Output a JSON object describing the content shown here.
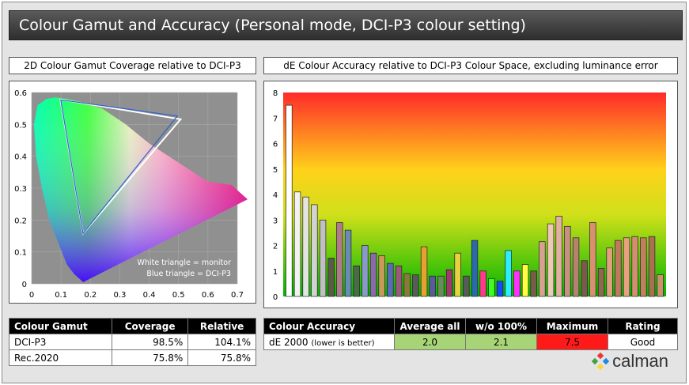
{
  "title": "Colour Gamut and Accuracy (Personal mode, DCI-P3 colour setting)",
  "gamut_panel": {
    "heading": "2D Colour Gamut Coverage relative to DCI-P3",
    "legend_white": "White triangle = monitor",
    "legend_blue": "Blue triangle = DCI-P3"
  },
  "de_panel": {
    "heading": "dE Colour Accuracy relative to DCI-P3 Colour Space, excluding luminance error"
  },
  "chart_data": [
    {
      "type": "scatter",
      "title": "2D Colour Gamut Coverage relative to DCI-P3",
      "xlim": [
        0,
        0.7
      ],
      "ylim": [
        0,
        0.6
      ],
      "x_ticks": [
        "0",
        "0.1",
        "0.2",
        "0.3",
        "0.4",
        "0.5",
        "0.6",
        "0.7"
      ],
      "y_ticks": [
        "0",
        "0.1",
        "0.2",
        "0.3",
        "0.4",
        "0.5",
        "0.6"
      ],
      "series": [
        {
          "name": "monitor",
          "points": [
            [
              0.507,
              0.516
            ],
            [
              0.098,
              0.578
            ],
            [
              0.175,
              0.158
            ]
          ]
        },
        {
          "name": "DCI-P3",
          "points": [
            [
              0.496,
              0.526
            ],
            [
              0.099,
              0.577
            ],
            [
              0.175,
              0.158
            ]
          ]
        }
      ]
    },
    {
      "type": "bar",
      "title": "dE Colour Accuracy relative to DCI-P3 Colour Space, excluding luminance error",
      "ylim": [
        0,
        8
      ],
      "y_ticks": [
        "0",
        "1",
        "2",
        "3",
        "4",
        "5",
        "6",
        "7",
        "8"
      ],
      "values": [
        7.5,
        4.1,
        3.9,
        3.6,
        3.0,
        1.5,
        2.9,
        2.6,
        1.2,
        2.0,
        1.7,
        1.6,
        1.3,
        1.2,
        0.9,
        0.85,
        1.95,
        0.8,
        0.8,
        1.05,
        1.7,
        0.8,
        2.2,
        1.0,
        0.7,
        0.6,
        1.8,
        1.0,
        1.25,
        1.0,
        2.15,
        2.85,
        3.15,
        2.75,
        2.3,
        1.4,
        2.9,
        1.1,
        1.9,
        2.2,
        2.3,
        2.35,
        2.3,
        2.35,
        0.85
      ],
      "colors": [
        "#ffffff",
        "#f2f2f2",
        "#e3e3e3",
        "#d2d2d2",
        "#c0c0c0",
        "#5a5a46",
        "#b07a8a",
        "#6a8ab8",
        "#4a6a48",
        "#8a9ac8",
        "#8a6aa8",
        "#c89a5a",
        "#5a6ab8",
        "#9a5a7a",
        "#8a7a3a",
        "#5a5a5a",
        "#e8a030",
        "#5a5a9a",
        "#6a8a5a",
        "#a03a6a",
        "#e8d040",
        "#5a5a5a",
        "#2a6aa8",
        "#ff3a8a",
        "#40ff20",
        "#1848ff",
        "#28f0ff",
        "#ff30ff",
        "#ffff40",
        "#7a5a4a",
        "#d8a090",
        "#f0c8b8",
        "#e0b0a0",
        "#c89080",
        "#b88070",
        "#7a5a4a",
        "#d89070",
        "#8a6a4a",
        "#e0a080",
        "#c07860",
        "#e8a080",
        "#d09070",
        "#c08060",
        "#a87050",
        "#cc9070"
      ]
    }
  ],
  "gamut_table": {
    "headers": [
      "Colour Gamut",
      "Coverage",
      "Relative"
    ],
    "rows": [
      [
        "DCI-P3",
        "98.5%",
        "104.1%"
      ],
      [
        "Rec.2020",
        "75.8%",
        "75.8%"
      ]
    ]
  },
  "accuracy_table": {
    "headers": [
      "Colour Accuracy",
      "Average all",
      "w/o 100%",
      "Maximum",
      "Rating"
    ],
    "row_label": "dE 2000",
    "row_note": "(lower is better)",
    "values": [
      "2.0",
      "2.1",
      "7.5",
      "Good"
    ],
    "cell_colors": [
      "#a8d478",
      "#a8d478",
      "#ff1a1a",
      "#ffffff"
    ]
  },
  "logo_text": "calman"
}
